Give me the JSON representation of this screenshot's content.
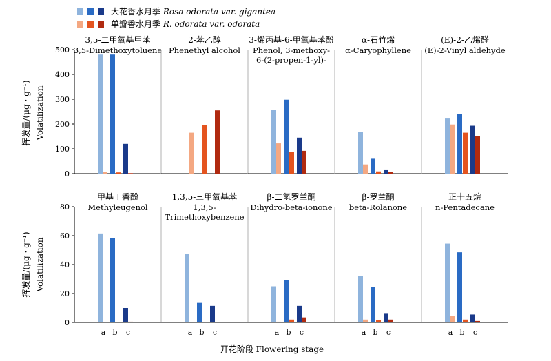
{
  "figure": {
    "ylabel_cn": "挥发量/(μg · g⁻¹)",
    "ylabel_en": "Volatilization",
    "xlabel": "开花阶段  Flowering stage"
  },
  "legend": [
    {
      "name_cn": "大花香水月季",
      "name_en": "Rosa odorata var. gigantea",
      "colors": [
        "#8fb4dd",
        "#2a6bc4",
        "#1a3a8a"
      ]
    },
    {
      "name_cn": "单瓣香水月季",
      "name_en": "R. odorata var. odorata",
      "colors": [
        "#f4a882",
        "#e4541f",
        "#b02a10"
      ]
    }
  ],
  "chart_data": [
    {
      "type": "bar",
      "title_cn": "3,5-二甲氧基甲苯",
      "title_en": [
        "3,5-Dimethoxytoluene"
      ],
      "categories": [
        "a",
        "b",
        "c"
      ],
      "ylim": [
        0,
        500
      ],
      "yticks": [
        0,
        100,
        200,
        300,
        400,
        500
      ],
      "gigantea": [
        480,
        480,
        120
      ],
      "odorata": [
        8,
        5,
        2
      ]
    },
    {
      "type": "bar",
      "title_cn": "2-苯乙醇",
      "title_en": [
        "Phenethyl alcohol"
      ],
      "categories": [
        "a",
        "b",
        "c"
      ],
      "ylim": [
        0,
        500
      ],
      "yticks": [
        0,
        100,
        200,
        300,
        400,
        500
      ],
      "gigantea": [
        0,
        0,
        0
      ],
      "odorata": [
        165,
        195,
        255
      ]
    },
    {
      "type": "bar",
      "title_cn": "3-烯丙基-6-甲氧基苯酚",
      "title_en": [
        "Phenol, 3-methoxy-",
        "6-(2-propen-1-yl)-"
      ],
      "categories": [
        "a",
        "b",
        "c"
      ],
      "ylim": [
        0,
        500
      ],
      "yticks": [
        0,
        100,
        200,
        300,
        400,
        500
      ],
      "gigantea": [
        258,
        298,
        145
      ],
      "odorata": [
        122,
        88,
        92
      ]
    },
    {
      "type": "bar",
      "title_cn": "α-石竹烯",
      "title_en": [
        "α-Caryophyllene"
      ],
      "categories": [
        "a",
        "b",
        "c"
      ],
      "ylim": [
        0,
        500
      ],
      "yticks": [
        0,
        100,
        200,
        300,
        400,
        500
      ],
      "gigantea": [
        168,
        60,
        14
      ],
      "odorata": [
        37,
        9,
        7
      ]
    },
    {
      "type": "bar",
      "title_cn": "(E)-2-乙烯醛",
      "title_en": [
        "(E)-2-Vinyl aldehyde"
      ],
      "categories": [
        "a",
        "b",
        "c"
      ],
      "ylim": [
        0,
        500
      ],
      "yticks": [
        0,
        100,
        200,
        300,
        400,
        500
      ],
      "gigantea": [
        222,
        240,
        193
      ],
      "odorata": [
        198,
        165,
        152
      ]
    },
    {
      "type": "bar",
      "title_cn": "甲基丁香酚",
      "title_en": [
        "Methyleugenol"
      ],
      "categories": [
        "a",
        "b",
        "c"
      ],
      "ylim": [
        0,
        80
      ],
      "yticks": [
        0,
        20,
        40,
        60,
        80
      ],
      "gigantea": [
        61.5,
        58.5,
        10
      ],
      "odorata": [
        0,
        0,
        0.5
      ]
    },
    {
      "type": "bar",
      "title_cn": "1,3,5-三甲氧基苯",
      "title_en": [
        "1,3,5-",
        "Trimethoxybenzene"
      ],
      "categories": [
        "a",
        "b",
        "c"
      ],
      "ylim": [
        0,
        80
      ],
      "yticks": [
        0,
        20,
        40,
        60,
        80
      ],
      "gigantea": [
        47.5,
        13.5,
        11.5
      ],
      "odorata": [
        0,
        0,
        0
      ]
    },
    {
      "type": "bar",
      "title_cn": "β-二氢罗兰酮",
      "title_en": [
        "Dihydro-beta-ionone"
      ],
      "categories": [
        "a",
        "b",
        "c"
      ],
      "ylim": [
        0,
        80
      ],
      "yticks": [
        0,
        20,
        40,
        60,
        80
      ],
      "gigantea": [
        25,
        29.5,
        11.5
      ],
      "odorata": [
        0.5,
        2,
        3.5
      ]
    },
    {
      "type": "bar",
      "title_cn": "β-罗兰酮",
      "title_en": [
        "beta-Rolanone"
      ],
      "categories": [
        "a",
        "b",
        "c"
      ],
      "ylim": [
        0,
        80
      ],
      "yticks": [
        0,
        20,
        40,
        60,
        80
      ],
      "gigantea": [
        32,
        24.5,
        6
      ],
      "odorata": [
        2,
        1.5,
        2
      ]
    },
    {
      "type": "bar",
      "title_cn": "正十五烷",
      "title_en": [
        "n-Pentadecane"
      ],
      "categories": [
        "a",
        "b",
        "c"
      ],
      "ylim": [
        0,
        80
      ],
      "yticks": [
        0,
        20,
        40,
        60,
        80
      ],
      "gigantea": [
        54.5,
        48.5,
        5.5
      ],
      "odorata": [
        4.5,
        2,
        1
      ]
    }
  ]
}
